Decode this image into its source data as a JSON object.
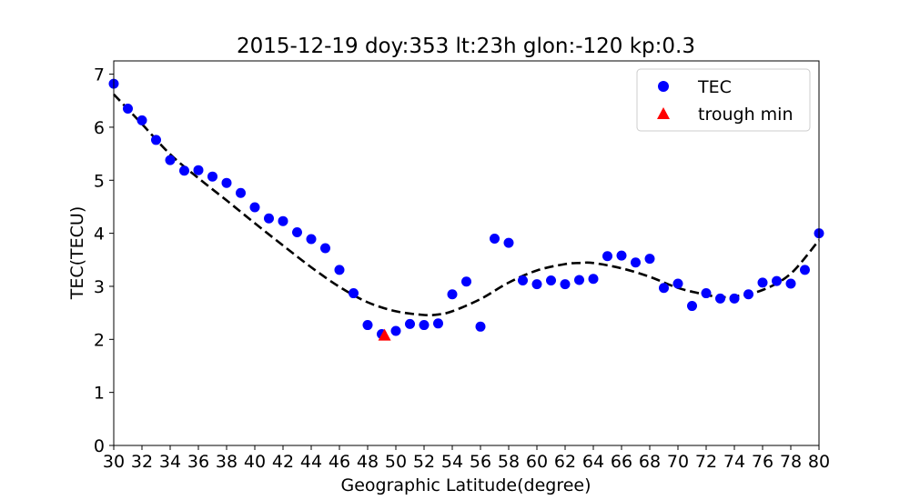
{
  "chart_data": {
    "type": "scatter",
    "title": "2015-12-19  doy:353  lt:23h  glon:-120  kp:0.3",
    "xlabel": "Geographic Latitude(degree)",
    "ylabel": "TEC(TECU)",
    "xlim": [
      30,
      80
    ],
    "ylim": [
      0,
      7.25
    ],
    "xticks": [
      30,
      32,
      34,
      36,
      38,
      40,
      42,
      44,
      46,
      48,
      50,
      52,
      54,
      56,
      58,
      60,
      62,
      64,
      66,
      68,
      70,
      72,
      74,
      76,
      78,
      80
    ],
    "yticks": [
      0,
      1,
      2,
      3,
      4,
      5,
      6,
      7
    ],
    "grid": false,
    "legend_position": "top-right",
    "colors": {
      "tec": "#0000ff",
      "trough": "#ff0000",
      "fit": "#000000"
    },
    "series": [
      {
        "name": "TEC",
        "marker": "circle",
        "x": [
          30,
          31,
          32,
          33,
          34,
          35,
          36,
          37,
          38,
          39,
          40,
          41,
          42,
          43,
          44,
          45,
          46,
          47,
          48,
          49,
          50,
          51,
          52,
          53,
          54,
          55,
          56,
          57,
          58,
          59,
          60,
          61,
          62,
          63,
          64,
          65,
          66,
          67,
          68,
          69,
          70,
          71,
          72,
          73,
          74,
          75,
          76,
          77,
          78,
          79,
          80
        ],
        "y": [
          6.82,
          6.35,
          6.13,
          5.76,
          5.38,
          5.18,
          5.19,
          5.07,
          4.95,
          4.76,
          4.49,
          4.28,
          4.23,
          4.02,
          3.89,
          3.72,
          3.31,
          2.87,
          2.27,
          2.1,
          2.16,
          2.29,
          2.27,
          2.3,
          2.85,
          3.09,
          2.24,
          3.9,
          3.82,
          3.11,
          3.04,
          3.11,
          3.04,
          3.12,
          3.14,
          3.57,
          3.58,
          3.45,
          3.52,
          2.97,
          3.05,
          2.63,
          2.87,
          2.77,
          2.77,
          2.85,
          3.07,
          3.1,
          3.05,
          3.31,
          4.0
        ]
      },
      {
        "name": "trough min",
        "marker": "triangle",
        "x": [
          49.2
        ],
        "y": [
          2.08
        ]
      },
      {
        "name": "",
        "style": "dashed-line",
        "x": [
          30,
          32,
          34,
          36,
          38,
          40,
          42,
          44,
          46,
          48,
          50,
          52,
          53,
          54,
          56,
          58,
          60,
          62,
          63,
          64,
          66,
          68,
          70,
          72,
          73,
          74,
          76,
          78,
          80
        ],
        "y": [
          6.62,
          6.06,
          5.49,
          5.04,
          4.62,
          4.19,
          3.77,
          3.36,
          2.99,
          2.7,
          2.53,
          2.46,
          2.47,
          2.53,
          2.76,
          3.07,
          3.3,
          3.42,
          3.44,
          3.44,
          3.34,
          3.18,
          2.97,
          2.84,
          2.8,
          2.81,
          2.93,
          3.24,
          3.87
        ]
      }
    ]
  }
}
